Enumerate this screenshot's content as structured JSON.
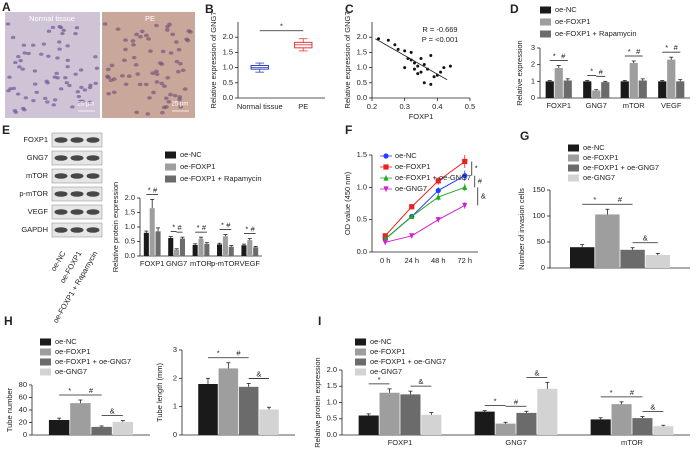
{
  "images": {
    "panel": "A",
    "labels": [
      "Normal tissue",
      "PE"
    ],
    "scale_bar": "25 μm"
  },
  "blot": {
    "panel": "E",
    "proteins": [
      "FOXP1",
      "GNG7",
      "mTOR",
      "p-mTOR",
      "VEGF",
      "GAPDH"
    ],
    "lanes": [
      "oe-NC",
      "oe-FOXP1",
      "oe-FOXP1 + Rapamycin"
    ]
  },
  "chart_data": [
    {
      "type": "box",
      "panel": "B",
      "ylabel": "Relative expression of GNG7",
      "categories": [
        "Normal tissue",
        "PE"
      ],
      "colors": [
        "#2b3fbf",
        "#e03a3a"
      ],
      "boxes": [
        {
          "min": 0.85,
          "q1": 0.95,
          "median": 1.0,
          "q3": 1.07,
          "max": 1.15
        },
        {
          "min": 1.55,
          "q1": 1.65,
          "median": 1.75,
          "q3": 1.83,
          "max": 1.95
        }
      ],
      "ylim": [
        0,
        2.5
      ],
      "yticks": [
        {
          "value": 0,
          "label": "0.0"
        },
        0.5,
        {
          "value": 1,
          "label": "1.0"
        },
        1.5,
        {
          "value": 2,
          "label": "2.0"
        }
      ],
      "significance": [
        {
          "text": "*",
          "pair": [
            0,
            1
          ]
        }
      ]
    },
    {
      "type": "scatter",
      "panel": "C",
      "ylabel": "Relative expression of GNG7",
      "xlabel": "FOXP1",
      "annotations": [
        "R = -0.669",
        "P = <0.001"
      ],
      "x": [
        0.22,
        0.25,
        0.27,
        0.28,
        0.3,
        0.31,
        0.32,
        0.32,
        0.33,
        0.34,
        0.33,
        0.35,
        0.35,
        0.36,
        0.37,
        0.34,
        0.38,
        0.39,
        0.4,
        0.41,
        0.42,
        0.36,
        0.3,
        0.44,
        0.38
      ],
      "y": [
        1.95,
        1.9,
        1.75,
        1.6,
        1.55,
        1.3,
        1.25,
        1.5,
        1.15,
        1.05,
        0.95,
        1.3,
        0.85,
        1.1,
        0.95,
        0.8,
        0.45,
        0.7,
        0.75,
        0.85,
        1.0,
        0.5,
        1.0,
        1.05,
        1.4
      ],
      "fit": {
        "x": [
          0.21,
          0.43
        ],
        "y": [
          1.95,
          0.6
        ]
      },
      "xlim": [
        0.2,
        0.5
      ],
      "xticks": [
        0.2,
        0.3,
        0.4,
        0.5
      ],
      "ylim": [
        0,
        2.5
      ],
      "yticks": [
        {
          "value": 0,
          "label": "0.0"
        },
        0.5,
        {
          "value": 1,
          "label": "1.0"
        },
        1.5,
        {
          "value": 2,
          "label": "2.0"
        }
      ]
    },
    {
      "type": "bar",
      "panel": "D",
      "ylabel": "Relative expression",
      "categories": [
        "FOXP1",
        "GNG7",
        "mTOR",
        "VEGF"
      ],
      "series": [
        {
          "name": "oe-NC",
          "color": "#1a1a1a",
          "values": [
            1,
            1,
            1,
            1
          ],
          "errors": [
            0.05,
            0.05,
            0.05,
            0.05
          ]
        },
        {
          "name": "oe-FOXP1",
          "color": "#9e9e9e",
          "values": [
            1.8,
            0.45,
            2.1,
            2.3
          ],
          "errors": [
            0.15,
            0.05,
            0.12,
            0.15
          ]
        },
        {
          "name": "oe-FOXP1 + Rapamycin",
          "color": "#6b6b6b",
          "values": [
            1.05,
            0.95,
            1.05,
            1.0
          ],
          "errors": [
            0.1,
            0.05,
            0.1,
            0.1
          ]
        }
      ],
      "ylim": [
        0,
        3
      ],
      "yticks": [
        0,
        1,
        2,
        3
      ],
      "significance": [
        {
          "text": "*",
          "category": 0,
          "pair": [
            0,
            1
          ]
        },
        {
          "text": "#",
          "category": 0,
          "pair": [
            1,
            2
          ]
        },
        {
          "text": "*",
          "category": 1,
          "pair": [
            0,
            1
          ]
        },
        {
          "text": "#",
          "category": 1,
          "pair": [
            1,
            2
          ]
        },
        {
          "text": "*",
          "category": 2,
          "pair": [
            0,
            1
          ]
        },
        {
          "text": "#",
          "category": 2,
          "pair": [
            1,
            2
          ]
        },
        {
          "text": "*",
          "category": 3,
          "pair": [
            0,
            1
          ]
        },
        {
          "text": "#",
          "category": 3,
          "pair": [
            1,
            2
          ]
        }
      ]
    },
    {
      "type": "bar",
      "ylabel": "Relative protein expression",
      "categories": [
        "FOXP1",
        "GNG7",
        "mTOR",
        "p-mTOR",
        "VEGF"
      ],
      "series": [
        {
          "name": "oe-NC",
          "color": "#1a1a1a",
          "values": [
            0.8,
            0.62,
            0.38,
            0.4,
            0.37
          ],
          "errors": [
            0.06,
            0.05,
            0.04,
            0.04,
            0.04
          ]
        },
        {
          "name": "oe-FOXP1",
          "color": "#9e9e9e",
          "values": [
            1.65,
            0.22,
            0.6,
            0.68,
            0.55
          ],
          "errors": [
            0.3,
            0.03,
            0.05,
            0.06,
            0.05
          ]
        },
        {
          "name": "oe-FOXP1 + Rapamycin",
          "color": "#6b6b6b",
          "values": [
            0.85,
            0.6,
            0.42,
            0.32,
            0.3
          ],
          "errors": [
            0.12,
            0.05,
            0.04,
            0.04,
            0.03
          ]
        }
      ],
      "ylim": [
        0,
        2
      ],
      "yticks": [
        {
          "value": 0,
          "label": "0.0"
        },
        0.5,
        {
          "value": 1,
          "label": "1.0"
        },
        1.5,
        {
          "value": 2,
          "label": "2.0"
        }
      ],
      "significance": [
        {
          "text": "*",
          "category": 0,
          "pair": [
            0,
            1
          ]
        },
        {
          "text": "#",
          "category": 0,
          "pair": [
            1,
            2
          ]
        },
        {
          "text": "*",
          "category": 1,
          "pair": [
            0,
            1
          ]
        },
        {
          "text": "#",
          "category": 1,
          "pair": [
            1,
            2
          ]
        },
        {
          "text": "*",
          "category": 2,
          "pair": [
            0,
            1
          ]
        },
        {
          "text": "#",
          "category": 2,
          "pair": [
            1,
            2
          ]
        },
        {
          "text": "*",
          "category": 3,
          "pair": [
            0,
            1
          ]
        },
        {
          "text": "#",
          "category": 3,
          "pair": [
            1,
            2
          ]
        },
        {
          "text": "*",
          "category": 4,
          "pair": [
            0,
            1
          ]
        },
        {
          "text": "#",
          "category": 4,
          "pair": [
            1,
            2
          ]
        }
      ]
    },
    {
      "type": "line",
      "panel": "F",
      "ylabel": "OD value (450 nm)",
      "categories": [
        "0 h",
        "24 h",
        "48 h",
        "72 h"
      ],
      "series": [
        {
          "name": "oe-NC",
          "color": "#1f3fff",
          "values": [
            0.2,
            0.55,
            0.95,
            1.18
          ],
          "errors": [
            0.02,
            0.03,
            0.05,
            0.08
          ]
        },
        {
          "name": "oe-FOXP1",
          "color": "#e8231f",
          "values": [
            0.25,
            0.7,
            1.1,
            1.4
          ],
          "errors": [
            0.02,
            0.04,
            0.06,
            0.1
          ]
        },
        {
          "name": "oe-FOXP1 + oe-GNG7",
          "color": "#22a822",
          "values": [
            0.2,
            0.55,
            0.85,
            1.0
          ],
          "errors": [
            0.02,
            0.03,
            0.05,
            0.06
          ]
        },
        {
          "name": "oe-GNG7",
          "color": "#d020d0",
          "values": [
            0.15,
            0.25,
            0.5,
            0.72
          ],
          "errors": [
            0.02,
            0.02,
            0.04,
            0.05
          ]
        }
      ],
      "ylim": [
        0,
        1.5
      ],
      "yticks": [
        {
          "value": 0,
          "label": "0.0"
        },
        0.5,
        {
          "value": 1,
          "label": "1.0"
        },
        1.5
      ],
      "significance": [
        {
          "text": "*",
          "pair": [
            1,
            0
          ]
        },
        {
          "text": "#",
          "pair": [
            0,
            2
          ]
        },
        {
          "text": "&",
          "pair": [
            2,
            3
          ]
        }
      ]
    },
    {
      "type": "bar",
      "panel": "G",
      "ylabel": "Number of invasion cells",
      "series": [
        {
          "name": "oe-NC",
          "color": "#1a1a1a",
          "values": [
            40
          ],
          "errors": [
            5
          ]
        },
        {
          "name": "oe-FOXP1",
          "color": "#9e9e9e",
          "values": [
            103
          ],
          "errors": [
            10
          ]
        },
        {
          "name": "oe-FOXP1 + oe-GNG7",
          "color": "#6b6b6b",
          "values": [
            35
          ],
          "errors": [
            4
          ]
        },
        {
          "name": "oe-GNG7",
          "color": "#d3d3d3",
          "values": [
            25
          ],
          "errors": [
            3
          ]
        }
      ],
      "ylim": [
        0,
        150
      ],
      "yticks": [
        0,
        50,
        100,
        150
      ],
      "significance": [
        {
          "text": "*",
          "category": 0,
          "pair": [
            0,
            1
          ]
        },
        {
          "text": "#",
          "category": 0,
          "pair": [
            1,
            2
          ]
        },
        {
          "text": "&",
          "category": 0,
          "pair": [
            2,
            3
          ]
        }
      ]
    },
    {
      "type": "bar",
      "panel": "H",
      "ylabel": "Tube number",
      "series": [
        {
          "name": "oe-NC",
          "color": "#1a1a1a",
          "values": [
            24
          ],
          "errors": [
            3
          ]
        },
        {
          "name": "oe-FOXP1",
          "color": "#9e9e9e",
          "values": [
            51
          ],
          "errors": [
            5
          ]
        },
        {
          "name": "oe-FOXP1 + oe-GNG7",
          "color": "#6b6b6b",
          "values": [
            13
          ],
          "errors": [
            1.5
          ]
        },
        {
          "name": "oe-GNG7",
          "color": "#d3d3d3",
          "values": [
            21
          ],
          "errors": [
            2
          ]
        }
      ],
      "ylim": [
        0,
        80
      ],
      "yticks": [
        0,
        20,
        40,
        60,
        80
      ],
      "significance": [
        {
          "text": "*",
          "category": 0,
          "pair": [
            0,
            1
          ]
        },
        {
          "text": "#",
          "category": 0,
          "pair": [
            1,
            2
          ]
        },
        {
          "text": "&",
          "category": 0,
          "pair": [
            2,
            3
          ]
        }
      ]
    },
    {
      "type": "bar",
      "ylabel": "Tube length (mm)",
      "series": [
        {
          "color": "#1a1a1a",
          "values": [
            1.8
          ],
          "errors": [
            0.2
          ]
        },
        {
          "color": "#9e9e9e",
          "values": [
            2.35
          ],
          "errors": [
            0.2
          ]
        },
        {
          "color": "#6b6b6b",
          "values": [
            1.7
          ],
          "errors": [
            0.12
          ]
        },
        {
          "color": "#d3d3d3",
          "values": [
            0.9
          ],
          "errors": [
            0.08
          ]
        }
      ],
      "ylim": [
        0,
        3
      ],
      "yticks": [
        0,
        1,
        2,
        3
      ],
      "significance": [
        {
          "text": "*",
          "category": 0,
          "pair": [
            0,
            1
          ]
        },
        {
          "text": "#",
          "category": 0,
          "pair": [
            1,
            2
          ]
        },
        {
          "text": "&",
          "category": 0,
          "pair": [
            2,
            3
          ]
        }
      ]
    },
    {
      "type": "bar",
      "panel": "I",
      "ylabel": "Relative protein expression",
      "categories": [
        "FOXP1",
        "GNG7",
        "mTOR"
      ],
      "series": [
        {
          "name": "oe-NC",
          "color": "#1a1a1a",
          "values": [
            0.6,
            0.72,
            0.48
          ],
          "errors": [
            0.05,
            0.03,
            0.05
          ]
        },
        {
          "name": "oe-FOXP1",
          "color": "#9e9e9e",
          "values": [
            1.3,
            0.35,
            0.95
          ],
          "errors": [
            0.12,
            0.04,
            0.07
          ]
        },
        {
          "name": "oe-FOXP1 + oe-GNG7",
          "color": "#6b6b6b",
          "values": [
            1.25,
            0.68,
            0.52
          ],
          "errors": [
            0.1,
            0.05,
            0.05
          ]
        },
        {
          "name": "oe-GNG7",
          "color": "#d3d3d3",
          "values": [
            0.62,
            1.42,
            0.27
          ],
          "errors": [
            0.07,
            0.2,
            0.03
          ]
        }
      ],
      "ylim": [
        0,
        2
      ],
      "yticks": [
        {
          "value": 0,
          "label": "0.0"
        },
        0.5,
        {
          "value": 1,
          "label": "1.0"
        },
        1.5,
        {
          "value": 2,
          "label": "2.0"
        }
      ],
      "significance": [
        {
          "text": "*",
          "category": 0,
          "pair": [
            0,
            1
          ]
        },
        {
          "text": "&",
          "category": 0,
          "pair": [
            2,
            3
          ]
        },
        {
          "text": "*",
          "category": 1,
          "pair": [
            0,
            1
          ]
        },
        {
          "text": "#",
          "category": 1,
          "pair": [
            1,
            2
          ]
        },
        {
          "text": "&",
          "category": 1,
          "pair": [
            2,
            3
          ]
        },
        {
          "text": "*",
          "category": 2,
          "pair": [
            0,
            1
          ]
        },
        {
          "text": "#",
          "category": 2,
          "pair": [
            1,
            2
          ]
        },
        {
          "text": "&",
          "category": 2,
          "pair": [
            2,
            3
          ]
        }
      ]
    }
  ]
}
